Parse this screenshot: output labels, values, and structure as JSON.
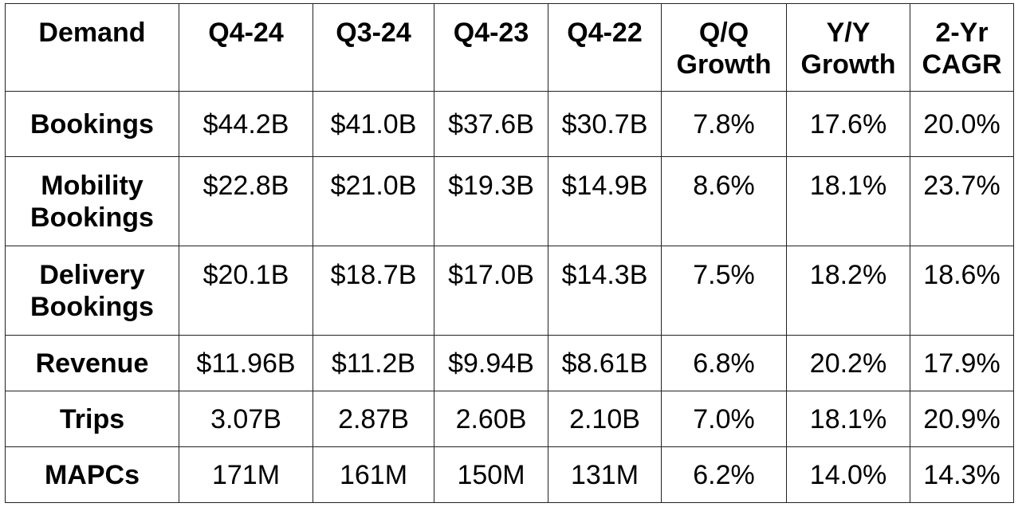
{
  "table": {
    "headers": [
      "Demand",
      "Q4-24",
      "Q3-24",
      "Q4-23",
      "Q4-22",
      "Q/Q Growth",
      "Y/Y Growth",
      "2-Yr CAGR"
    ],
    "rows": [
      {
        "label": "Bookings",
        "values": [
          "$44.2B",
          "$41.0B",
          "$37.6B",
          "$30.7B",
          "7.8%",
          "17.6%",
          "20.0%"
        ]
      },
      {
        "label": "Mobility Bookings",
        "values": [
          "$22.8B",
          "$21.0B",
          "$19.3B",
          "$14.9B",
          "8.6%",
          "18.1%",
          "23.7%"
        ]
      },
      {
        "label": "Delivery Bookings",
        "values": [
          "$20.1B",
          "$18.7B",
          "$17.0B",
          "$14.3B",
          "7.5%",
          "18.2%",
          "18.6%"
        ]
      },
      {
        "label": "Revenue",
        "values": [
          "$11.96B",
          "$11.2B",
          "$9.94B",
          "$8.61B",
          "6.8%",
          "20.2%",
          "17.9%"
        ]
      },
      {
        "label": "Trips",
        "values": [
          "3.07B",
          "2.87B",
          "2.60B",
          "2.10B",
          "7.0%",
          "18.1%",
          "20.9%"
        ]
      },
      {
        "label": "MAPCs",
        "values": [
          "171M",
          "161M",
          "150M",
          "131M",
          "6.2%",
          "14.0%",
          "14.3%"
        ]
      }
    ]
  }
}
